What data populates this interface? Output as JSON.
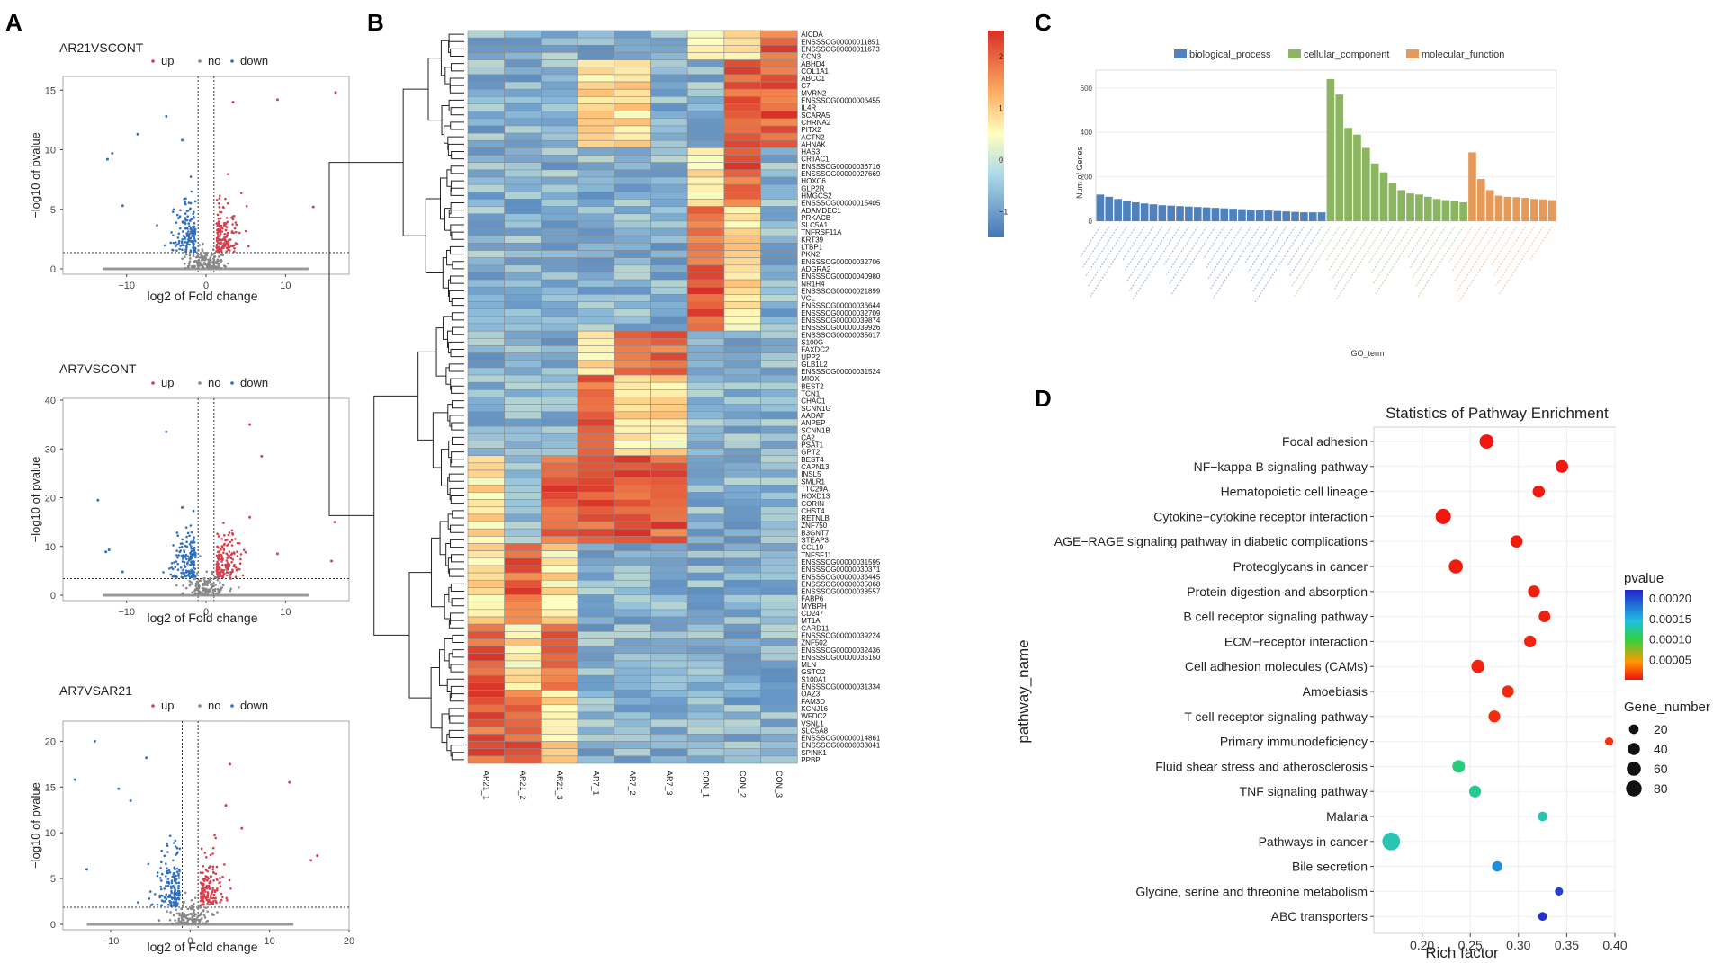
{
  "panels": {
    "A": "A",
    "B": "B",
    "C": "C",
    "D": "D"
  },
  "colors": {
    "up": "#d6404e",
    "down": "#2f6fbf",
    "no": "#888888",
    "bp": "#4f81bd",
    "cc": "#8bb561",
    "mf": "#e69a5a",
    "heat_low": "#4575b4",
    "heat_mid": "#ffffbf",
    "heat_high": "#d73027"
  },
  "volcano": {
    "legend": {
      "up": "up",
      "no": "no",
      "down": "down"
    },
    "xlabel": "log2 of Fold change",
    "ylabel": "−log10 of pvalue",
    "plots": [
      {
        "title": "AR21VSCONT",
        "xlim": [
          -18,
          18
        ],
        "ylim": [
          0,
          16
        ],
        "xticks": [
          -10,
          0,
          10
        ],
        "xtick_labels": [
          "−10",
          "0",
          "10"
        ],
        "yticks": [
          0,
          5,
          10,
          15
        ],
        "ytick_labels": [
          "0",
          "5",
          "10",
          "15"
        ],
        "outliers_up": [
          [
            13.5,
            5.2
          ],
          [
            16.3,
            14.8
          ],
          [
            9.0,
            14.2
          ],
          [
            3.4,
            14.0
          ]
        ],
        "outliers_down": [
          [
            -12.4,
            9.2
          ],
          [
            -11.8,
            9.7
          ],
          [
            -8.6,
            11.3
          ],
          [
            -10.5,
            5.3
          ],
          [
            -5.0,
            12.8
          ],
          [
            -3.0,
            10.8
          ]
        ]
      },
      {
        "title": "AR7VSCONT",
        "xlim": [
          -18,
          18
        ],
        "ylim": [
          0,
          40
        ],
        "xticks": [
          -10,
          0,
          10
        ],
        "xtick_labels": [
          "−10",
          "0",
          "10"
        ],
        "yticks": [
          0,
          10,
          20,
          30,
          40
        ],
        "ytick_labels": [
          "0",
          "10",
          "20",
          "30",
          "40"
        ],
        "outliers_up": [
          [
            5.5,
            35.0
          ],
          [
            7.0,
            28.5
          ],
          [
            15.8,
            7.0
          ],
          [
            16.2,
            15.0
          ],
          [
            9.0,
            8.5
          ],
          [
            5.5,
            16.0
          ]
        ],
        "outliers_down": [
          [
            -12.6,
            8.9
          ],
          [
            -12.2,
            9.3
          ],
          [
            -13.6,
            19.5
          ],
          [
            -10.5,
            4.8
          ],
          [
            -5.0,
            33.5
          ],
          [
            -3.0,
            18.0
          ]
        ]
      },
      {
        "title": "AR7VSAR21",
        "xlim": [
          -16,
          20
        ],
        "ylim": [
          0,
          22
        ],
        "xticks": [
          -10,
          0,
          10,
          20
        ],
        "xtick_labels": [
          "−10",
          "0",
          "10",
          "20"
        ],
        "yticks": [
          0,
          5,
          10,
          15,
          20
        ],
        "ytick_labels": [
          "0",
          "5",
          "10",
          "15",
          "20"
        ],
        "outliers_up": [
          [
            12.5,
            15.5
          ],
          [
            16.0,
            7.5
          ],
          [
            15.2,
            7.0
          ],
          [
            5.0,
            17.5
          ],
          [
            4.5,
            13.0
          ],
          [
            6.5,
            10.5
          ]
        ],
        "outliers_down": [
          [
            -14.5,
            15.8
          ],
          [
            -13.0,
            6.0
          ],
          [
            -9.0,
            14.8
          ],
          [
            -7.5,
            13.5
          ],
          [
            -5.5,
            18.2
          ],
          [
            -12.0,
            20.0
          ]
        ]
      }
    ]
  },
  "heatmap": {
    "samples": [
      "AR21_1",
      "AR21_2",
      "AR21_3",
      "AR7_1",
      "AR7_2",
      "AR7_3",
      "CON_1",
      "CON_2",
      "CON_3"
    ],
    "legend_ticks": [
      2,
      1,
      0,
      -1
    ],
    "legend_tick_labels": [
      "2",
      "1",
      "0",
      "−1"
    ],
    "genes": [
      "AICDA",
      "ENSSSCG00000011851",
      "ENSSSCG00000011673",
      "CCN3",
      "ABHD4",
      "COL1A1",
      "ABCC1",
      "C7",
      "MVRN2",
      "ENSSSCG00000006455",
      "IL4R",
      "SCARA5",
      "CHRNA2",
      "PITX2",
      "ACTN2",
      "AHNAK",
      "HAS3",
      "CRTAC1",
      "ENSSSCG00000036716",
      "ENSSSCG00000027669",
      "HOXC6",
      "GLP2R",
      "HMGCS2",
      "ENSSSCG00000015405",
      "ADAMDEC1",
      "PRKACB",
      "SLC5A1",
      "TNFRSF11A",
      "KRT39",
      "LTBP1",
      "PKN2",
      "ENSSSCG00000032706",
      "ADGRA2",
      "ENSSSCG00000040980",
      "NR1H4",
      "ENSSSCG00000021899",
      "VCL",
      "ENSSSCG00000036644",
      "ENSSSCG00000032709",
      "ENSSSCG00000039874",
      "ENSSSCG00000039926",
      "ENSSSCG00000035617",
      "S100G",
      "FAXDC2",
      "UPP2",
      "GLB1L2",
      "ENSSSCG00000031524",
      "MIOX",
      "BEST2",
      "TCN1",
      "CHAC1",
      "SCNN1G",
      "AADAT",
      "ANPEP",
      "SCNN1B",
      "CA2",
      "PSAT1",
      "GPT2",
      "BEST4",
      "CAPN13",
      "INSL5",
      "SMLR1",
      "TTC29A",
      "HOXD13",
      "CORIN",
      "CHST4",
      "RETNLB",
      "ZNF750",
      "B3GNT7",
      "STEAP3",
      "CCL19",
      "TNFSF11",
      "ENSSSCG00000031595",
      "ENSSSCG00000030371",
      "ENSSSCG00000036445",
      "ENSSSCG00000035068",
      "ENSSSCG00000038557",
      "FABP6",
      "MYBPH",
      "CD247",
      "MT1A",
      "CARD11",
      "ENSSSCG00000039224",
      "ZNF502",
      "ENSSSCG00000032436",
      "ENSSSCG00000035150",
      "MLN",
      "GSTO2",
      "S100A1",
      "ENSSSCG00000031334",
      "OAZ3",
      "FAM3D",
      "KCNJ16",
      "WFDC2",
      "VSNL1",
      "SLC5A8",
      "ENSSSCG00000014861",
      "ENSSSCG00000033041",
      "SPINK1",
      "PPBP"
    ]
  },
  "go_chart": {
    "legend": [
      "biological_process",
      "cellular_component",
      "molecular_function"
    ],
    "ylabel": "Num of Genes",
    "xlabel": "GO_term",
    "yticks": [
      0,
      200,
      400,
      600
    ],
    "ytick_labels": [
      "0",
      "200",
      "400",
      "600"
    ]
  },
  "chart_data": {
    "type": "scatter",
    "title": "Statistics of Pathway Enrichment",
    "xlabel": "Rich factor",
    "ylabel": "pathway_name",
    "xlim": [
      0.15,
      0.4
    ],
    "xticks": [
      0.2,
      0.25,
      0.3,
      0.35,
      0.4
    ],
    "xtick_labels": [
      "0.20",
      "0.25",
      "0.30",
      "0.35",
      "0.40"
    ],
    "categories": [
      "Focal adhesion",
      "NF−kappa B signaling pathway",
      "Hematopoietic cell lineage",
      "Cytokine−cytokine receptor interaction",
      "AGE−RAGE signaling pathway in diabetic complications",
      "Proteoglycans in cancer",
      "Protein digestion and absorption",
      "B cell receptor signaling pathway",
      "ECM−receptor interaction",
      "Cell adhesion molecules (CAMs)",
      "Amoebiasis",
      "T cell receptor signaling pathway",
      "Primary immunodeficiency",
      "Fluid shear stress and atherosclerosis",
      "TNF signaling pathway",
      "Malaria",
      "Pathways in cancer",
      "Bile secretion",
      "Glycine, serine and threonine metabolism",
      "ABC transporters"
    ],
    "rich_factor": [
      0.267,
      0.345,
      0.321,
      0.222,
      0.298,
      0.235,
      0.316,
      0.327,
      0.312,
      0.258,
      0.289,
      0.275,
      0.394,
      0.238,
      0.255,
      0.325,
      0.168,
      0.278,
      0.342,
      0.325
    ],
    "gene_number": [
      62,
      45,
      40,
      75,
      42,
      60,
      38,
      35,
      38,
      50,
      38,
      38,
      12,
      45,
      38,
      20,
      110,
      25,
      12,
      15
    ],
    "pvalue": [
      2e-06,
      3e-06,
      3e-06,
      2e-06,
      4e-06,
      4e-06,
      5e-06,
      5e-06,
      6e-06,
      6e-06,
      8e-06,
      9e-06,
      1.1e-05,
      0.000115,
      0.000122,
      0.00013,
      0.00013,
      0.000168,
      0.000205,
      0.000212
    ],
    "color_legend_title": "pvalue",
    "color_legend_ticks": [
      0.0002,
      0.00015,
      0.0001,
      5e-05
    ],
    "color_legend_labels": [
      "0.00020",
      "0.00015",
      "0.00010",
      "0.00005"
    ],
    "size_legend_title": "Gene_number",
    "size_legend_values": [
      20,
      40,
      60,
      80
    ],
    "size_legend_labels": [
      "20",
      "40",
      "60",
      "80"
    ]
  }
}
